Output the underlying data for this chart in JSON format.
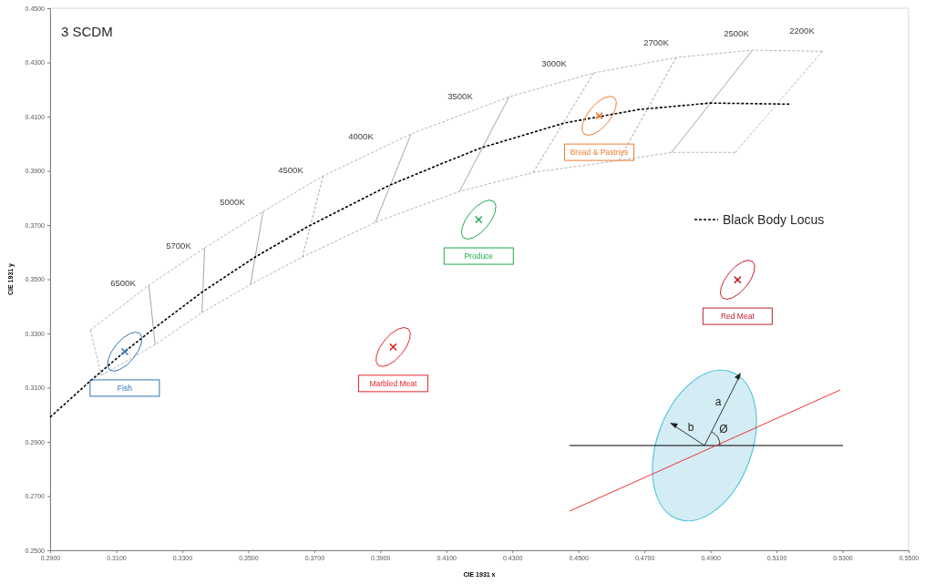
{
  "chart_data": {
    "type": "line",
    "title": "3 SCDM",
    "xlabel": "CIE 1931  x",
    "ylabel": "CIE 1931  y",
    "xlim": [
      0.29,
      0.55
    ],
    "xticks": [
      {
        "value": 0.29,
        "label": "0.2900"
      },
      {
        "value": 0.31,
        "label": "0.3100"
      },
      {
        "value": 0.33,
        "label": "0.3300"
      },
      {
        "value": 0.35,
        "label": "0.3500"
      },
      {
        "value": 0.37,
        "label": "0.3700"
      },
      {
        "value": 0.39,
        "label": "0.3900"
      },
      {
        "value": 0.41,
        "label": "0.4100"
      },
      {
        "value": 0.43,
        "label": "0.4300"
      },
      {
        "value": 0.45,
        "label": "0.4500"
      },
      {
        "value": 0.47,
        "label": "0.4700"
      },
      {
        "value": 0.49,
        "label": "0.4900"
      },
      {
        "value": 0.51,
        "label": "0.5100"
      },
      {
        "value": 0.53,
        "label": "0.5300"
      },
      {
        "value": 0.55,
        "label": "0.5500"
      }
    ],
    "ylim": [
      0.25,
      0.45
    ],
    "yticks": [
      {
        "value": 0.25,
        "label": "0.2500"
      },
      {
        "value": 0.27,
        "label": "0.2700"
      },
      {
        "value": 0.29,
        "label": "0.2900"
      },
      {
        "value": 0.31,
        "label": "0.3100"
      },
      {
        "value": 0.33,
        "label": "0.3300"
      },
      {
        "value": 0.35,
        "label": "0.3500"
      },
      {
        "value": 0.37,
        "label": "0.3700"
      },
      {
        "value": 0.39,
        "label": "0.3900"
      },
      {
        "value": 0.41,
        "label": "0.4100"
      },
      {
        "value": 0.43,
        "label": "0.4300"
      },
      {
        "value": 0.45,
        "label": "0.4500"
      }
    ],
    "legend": "right",
    "series": [
      {
        "color": "#b4b4b4",
        "line_style": "dashed",
        "x": [
          0.3022,
          0.3199,
          0.3368,
          0.3545,
          0.3727,
          0.3993,
          0.429,
          0.4546,
          0.4796,
          0.5027,
          0.5239
        ],
        "values": [
          0.3313,
          0.3478,
          0.3616,
          0.375,
          0.3881,
          0.4036,
          0.4173,
          0.4261,
          0.4318,
          0.4345,
          0.4341
        ]
      },
      {
        "color": "#b4b4b4",
        "line_style": "dashed",
        "x": [
          0.3055,
          0.3218,
          0.336,
          0.3507,
          0.3664,
          0.3885,
          0.414,
          0.4363,
          0.4622,
          0.4782,
          0.4975
        ],
        "values": [
          0.3145,
          0.3259,
          0.3377,
          0.3481,
          0.3582,
          0.371,
          0.3824,
          0.3894,
          0.3938,
          0.3968,
          0.3968
        ]
      },
      {
        "color": "#b4b4b4",
        "line_style": "dashed",
        "x": [
          0.3022,
          0.3055
        ],
        "values": [
          0.3313,
          0.3145
        ]
      },
      {
        "color": "#a6a6a6",
        "line_style": "solid",
        "x": [
          0.3199,
          0.3218
        ],
        "values": [
          0.3478,
          0.3259
        ]
      },
      {
        "color": "#a6a6a6",
        "line_style": "solid",
        "x": [
          0.3368,
          0.336
        ],
        "values": [
          0.3616,
          0.3377
        ]
      },
      {
        "color": "#a6a6a6",
        "line_style": "solid",
        "x": [
          0.3545,
          0.3507
        ],
        "values": [
          0.375,
          0.3481
        ]
      },
      {
        "color": "#a6a6a6",
        "line_style": "dashed",
        "x": [
          0.3727,
          0.3664
        ],
        "values": [
          0.3881,
          0.3582
        ]
      },
      {
        "color": "#a6a6a6",
        "line_style": "solid",
        "x": [
          0.3993,
          0.3885
        ],
        "values": [
          0.4036,
          0.371
        ]
      },
      {
        "color": "#a6a6a6",
        "line_style": "solid",
        "x": [
          0.429,
          0.414
        ],
        "values": [
          0.4173,
          0.3824
        ]
      },
      {
        "color": "#a6a6a6",
        "line_style": "dashed",
        "x": [
          0.4546,
          0.4363
        ],
        "values": [
          0.4261,
          0.3894
        ]
      },
      {
        "color": "#a6a6a6",
        "line_style": "dashed",
        "x": [
          0.4796,
          0.4622
        ],
        "values": [
          0.4318,
          0.3938
        ]
      },
      {
        "color": "#a6a6a6",
        "line_style": "solid",
        "x": [
          0.5027,
          0.4782
        ],
        "values": [
          0.4345,
          0.3968
        ]
      },
      {
        "color": "#b4b4b4",
        "line_style": "dashed",
        "x": [
          0.5239,
          0.4975
        ],
        "values": [
          0.4341,
          0.3968
        ]
      },
      {
        "name": "Black Body Locus",
        "color": "#000000",
        "line_style": "dashed",
        "x": [
          0.29,
          0.3022,
          0.3126,
          0.3213,
          0.3362,
          0.3517,
          0.3683,
          0.3928,
          0.4083,
          0.4206,
          0.4456,
          0.4682,
          0.4899,
          0.5139
        ],
        "values": [
          0.2991,
          0.3125,
          0.3233,
          0.3317,
          0.3454,
          0.3579,
          0.3696,
          0.3847,
          0.3925,
          0.3985,
          0.4076,
          0.4126,
          0.415,
          0.4146
        ]
      },
      {
        "color": "#2e75b6",
        "line_style": "solid",
        "x": [
          0.3074,
          0.3076,
          0.3085,
          0.3101,
          0.312,
          0.3141,
          0.3158,
          0.3172,
          0.3178
        ],
        "values": [
          0.3181,
          0.3204,
          0.3231,
          0.3259,
          0.3283,
          0.3299,
          0.3305,
          0.33,
          0.3285
        ]
      },
      {
        "color": "#2e75b6",
        "line_style": "solid",
        "x": [
          0.3074,
          0.308,
          0.3094,
          0.3111,
          0.3132,
          0.3151,
          0.3167,
          0.3176,
          0.3178
        ],
        "values": [
          0.3181,
          0.3166,
          0.3161,
          0.3167,
          0.3183,
          0.3207,
          0.3235,
          0.3262,
          0.3285
        ]
      },
      {
        "color": "#e5242c",
        "line_style": "solid",
        "x": [
          0.3887,
          0.3889,
          0.3898,
          0.3914,
          0.3933,
          0.3954,
          0.3971,
          0.3985,
          0.3991
        ],
        "values": [
          0.3198,
          0.3221,
          0.3248,
          0.3276,
          0.33,
          0.3316,
          0.3322,
          0.3317,
          0.3302
        ]
      },
      {
        "color": "#e5242c",
        "line_style": "solid",
        "x": [
          0.3887,
          0.3893,
          0.3907,
          0.3924,
          0.3945,
          0.3964,
          0.398,
          0.3989,
          0.3991
        ],
        "values": [
          0.3198,
          0.3183,
          0.3178,
          0.3184,
          0.32,
          0.3224,
          0.3252,
          0.3279,
          0.3302
        ]
      },
      {
        "color": "#1daa4f",
        "line_style": "solid",
        "x": [
          0.4146,
          0.4148,
          0.4157,
          0.4173,
          0.4192,
          0.4213,
          0.423,
          0.4244,
          0.425
        ],
        "values": [
          0.3668,
          0.3691,
          0.3718,
          0.3746,
          0.377,
          0.3786,
          0.3792,
          0.3787,
          0.3772
        ]
      },
      {
        "color": "#1daa4f",
        "line_style": "solid",
        "x": [
          0.4146,
          0.4152,
          0.4166,
          0.4183,
          0.4204,
          0.4223,
          0.4239,
          0.4248,
          0.425
        ],
        "values": [
          0.3668,
          0.3653,
          0.3648,
          0.3654,
          0.367,
          0.3694,
          0.3722,
          0.3749,
          0.3772
        ]
      },
      {
        "color": "#ed7d31",
        "line_style": "solid",
        "x": [
          0.4511,
          0.4513,
          0.4522,
          0.4538,
          0.4557,
          0.4578,
          0.4595,
          0.4609,
          0.4615
        ],
        "values": [
          0.4051,
          0.4074,
          0.4101,
          0.4129,
          0.4153,
          0.4169,
          0.4175,
          0.417,
          0.4155
        ]
      },
      {
        "color": "#ed7d31",
        "line_style": "solid",
        "x": [
          0.4511,
          0.4517,
          0.4531,
          0.4548,
          0.4569,
          0.4588,
          0.4604,
          0.4613,
          0.4615
        ],
        "values": [
          0.4051,
          0.4036,
          0.4031,
          0.4037,
          0.4053,
          0.4077,
          0.4105,
          0.4132,
          0.4155
        ]
      },
      {
        "color": "#c3202e",
        "line_style": "solid",
        "x": [
          0.493,
          0.4932,
          0.4941,
          0.4957,
          0.4976,
          0.4997,
          0.5014,
          0.5028,
          0.5034
        ],
        "values": [
          0.3446,
          0.3469,
          0.3496,
          0.3524,
          0.3548,
          0.3564,
          0.357,
          0.3565,
          0.355
        ]
      },
      {
        "color": "#c3202e",
        "line_style": "solid",
        "x": [
          0.493,
          0.4936,
          0.495,
          0.4967,
          0.4988,
          0.5007,
          0.5023,
          0.5032,
          0.5034
        ],
        "values": [
          0.3446,
          0.3431,
          0.3426,
          0.3432,
          0.3448,
          0.3472,
          0.35,
          0.3527,
          0.355
        ]
      },
      {
        "type": "scatter",
        "name": "Fish",
        "color": "#2e75b6",
        "marker": "cross",
        "x": [
          0.3126
        ],
        "values": [
          0.3233
        ]
      },
      {
        "type": "scatter",
        "name": "Marbled Meat",
        "color": "#e5242c",
        "marker": "cross",
        "x": [
          0.3939
        ],
        "values": [
          0.325
        ]
      },
      {
        "type": "scatter",
        "name": "Produce",
        "color": "#1daa4f",
        "marker": "cross",
        "x": [
          0.4198
        ],
        "values": [
          0.372
        ]
      },
      {
        "type": "scatter",
        "name": "Bread & Pastries",
        "color": "#ed7d31",
        "marker": "cross",
        "x": [
          0.4563
        ],
        "values": [
          0.4103
        ]
      },
      {
        "type": "scatter",
        "name": "Red Meat",
        "color": "#c3202e",
        "marker": "cross",
        "x": [
          0.4982
        ],
        "values": [
          0.3498
        ]
      }
    ],
    "annotations": [
      "6500K",
      "5700K",
      "5000K",
      "4500K",
      "4000K",
      "3500K",
      "3000K",
      "2700K",
      "2500K",
      "2200K",
      "a",
      "b",
      "Ø"
    ]
  }
}
